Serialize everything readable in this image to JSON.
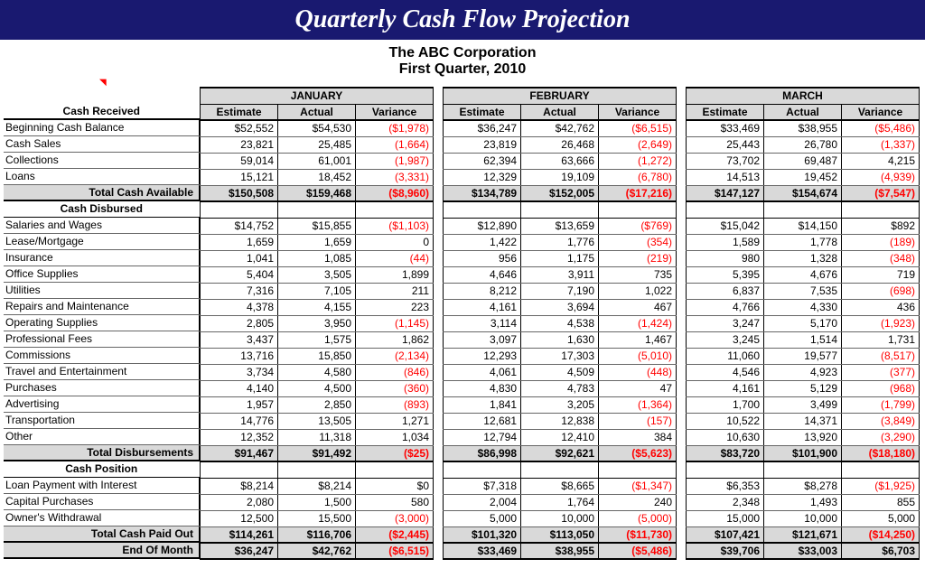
{
  "title": "Quarterly Cash Flow Projection",
  "company": "The ABC Corporation",
  "period": "First Quarter, 2010",
  "col_headers": [
    "Estimate",
    "Actual",
    "Variance"
  ],
  "months": [
    "JANUARY",
    "FEBRUARY",
    "MARCH"
  ],
  "colors": {
    "banner_bg": "#191970",
    "banner_text": "#ffffff",
    "header_bg": "#d9d9d9",
    "negative": "#ff0000",
    "grid": "#000000"
  },
  "sections": [
    {
      "name": "Cash Received",
      "rows": [
        {
          "label": "Beginning Cash Balance",
          "m": [
            [
              "$52,552",
              "$54,530",
              "($1,978)"
            ],
            [
              "$36,247",
              "$42,762",
              "($6,515)"
            ],
            [
              "$33,469",
              "$38,955",
              "($5,486)"
            ]
          ]
        },
        {
          "label": "Cash Sales",
          "m": [
            [
              "23,821",
              "25,485",
              "(1,664)"
            ],
            [
              "23,819",
              "26,468",
              "(2,649)"
            ],
            [
              "25,443",
              "26,780",
              "(1,337)"
            ]
          ]
        },
        {
          "label": "Collections",
          "m": [
            [
              "59,014",
              "61,001",
              "(1,987)"
            ],
            [
              "62,394",
              "63,666",
              "(1,272)"
            ],
            [
              "73,702",
              "69,487",
              "4,215"
            ]
          ]
        },
        {
          "label": "Loans",
          "m": [
            [
              "15,121",
              "18,452",
              "(3,331)"
            ],
            [
              "12,329",
              "19,109",
              "(6,780)"
            ],
            [
              "14,513",
              "19,452",
              "(4,939)"
            ]
          ]
        }
      ],
      "total": {
        "label": "Total Cash Available",
        "m": [
          [
            "$150,508",
            "$159,468",
            "($8,960)"
          ],
          [
            "$134,789",
            "$152,005",
            "($17,216)"
          ],
          [
            "$147,127",
            "$154,674",
            "($7,547)"
          ]
        ]
      }
    },
    {
      "name": "Cash Disbursed",
      "rows": [
        {
          "label": "Salaries and Wages",
          "m": [
            [
              "$14,752",
              "$15,855",
              "($1,103)"
            ],
            [
              "$12,890",
              "$13,659",
              "($769)"
            ],
            [
              "$15,042",
              "$14,150",
              "$892"
            ]
          ]
        },
        {
          "label": "Lease/Mortgage",
          "m": [
            [
              "1,659",
              "1,659",
              "0"
            ],
            [
              "1,422",
              "1,776",
              "(354)"
            ],
            [
              "1,589",
              "1,778",
              "(189)"
            ]
          ]
        },
        {
          "label": "Insurance",
          "m": [
            [
              "1,041",
              "1,085",
              "(44)"
            ],
            [
              "956",
              "1,175",
              "(219)"
            ],
            [
              "980",
              "1,328",
              "(348)"
            ]
          ]
        },
        {
          "label": "Office Supplies",
          "m": [
            [
              "5,404",
              "3,505",
              "1,899"
            ],
            [
              "4,646",
              "3,911",
              "735"
            ],
            [
              "5,395",
              "4,676",
              "719"
            ]
          ]
        },
        {
          "label": "Utilities",
          "m": [
            [
              "7,316",
              "7,105",
              "211"
            ],
            [
              "8,212",
              "7,190",
              "1,022"
            ],
            [
              "6,837",
              "7,535",
              "(698)"
            ]
          ]
        },
        {
          "label": "Repairs and Maintenance",
          "m": [
            [
              "4,378",
              "4,155",
              "223"
            ],
            [
              "4,161",
              "3,694",
              "467"
            ],
            [
              "4,766",
              "4,330",
              "436"
            ]
          ]
        },
        {
          "label": "Operating Supplies",
          "m": [
            [
              "2,805",
              "3,950",
              "(1,145)"
            ],
            [
              "3,114",
              "4,538",
              "(1,424)"
            ],
            [
              "3,247",
              "5,170",
              "(1,923)"
            ]
          ]
        },
        {
          "label": "Professional Fees",
          "m": [
            [
              "3,437",
              "1,575",
              "1,862"
            ],
            [
              "3,097",
              "1,630",
              "1,467"
            ],
            [
              "3,245",
              "1,514",
              "1,731"
            ]
          ]
        },
        {
          "label": "Commissions",
          "m": [
            [
              "13,716",
              "15,850",
              "(2,134)"
            ],
            [
              "12,293",
              "17,303",
              "(5,010)"
            ],
            [
              "11,060",
              "19,577",
              "(8,517)"
            ]
          ]
        },
        {
          "label": "Travel and Entertainment",
          "m": [
            [
              "3,734",
              "4,580",
              "(846)"
            ],
            [
              "4,061",
              "4,509",
              "(448)"
            ],
            [
              "4,546",
              "4,923",
              "(377)"
            ]
          ]
        },
        {
          "label": "Purchases",
          "m": [
            [
              "4,140",
              "4,500",
              "(360)"
            ],
            [
              "4,830",
              "4,783",
              "47"
            ],
            [
              "4,161",
              "5,129",
              "(968)"
            ]
          ]
        },
        {
          "label": "Advertising",
          "m": [
            [
              "1,957",
              "2,850",
              "(893)"
            ],
            [
              "1,841",
              "3,205",
              "(1,364)"
            ],
            [
              "1,700",
              "3,499",
              "(1,799)"
            ]
          ]
        },
        {
          "label": "Transportation",
          "m": [
            [
              "14,776",
              "13,505",
              "1,271"
            ],
            [
              "12,681",
              "12,838",
              "(157)"
            ],
            [
              "10,522",
              "14,371",
              "(3,849)"
            ]
          ]
        },
        {
          "label": "Other",
          "m": [
            [
              "12,352",
              "11,318",
              "1,034"
            ],
            [
              "12,794",
              "12,410",
              "384"
            ],
            [
              "10,630",
              "13,920",
              "(3,290)"
            ]
          ]
        }
      ],
      "total": {
        "label": "Total Disbursements",
        "m": [
          [
            "$91,467",
            "$91,492",
            "($25)"
          ],
          [
            "$86,998",
            "$92,621",
            "($5,623)"
          ],
          [
            "$83,720",
            "$101,900",
            "($18,180)"
          ]
        ]
      }
    },
    {
      "name": "Cash Position",
      "rows": [
        {
          "label": "Loan Payment with Interest",
          "m": [
            [
              "$8,214",
              "$8,214",
              "$0"
            ],
            [
              "$7,318",
              "$8,665",
              "($1,347)"
            ],
            [
              "$6,353",
              "$8,278",
              "($1,925)"
            ]
          ]
        },
        {
          "label": "Capital Purchases",
          "m": [
            [
              "2,080",
              "1,500",
              "580"
            ],
            [
              "2,004",
              "1,764",
              "240"
            ],
            [
              "2,348",
              "1,493",
              "855"
            ]
          ]
        },
        {
          "label": "Owner's Withdrawal",
          "m": [
            [
              "12,500",
              "15,500",
              "(3,000)"
            ],
            [
              "5,000",
              "10,000",
              "(5,000)"
            ],
            [
              "15,000",
              "10,000",
              "5,000"
            ]
          ]
        }
      ],
      "total": {
        "label": "Total Cash Paid Out",
        "m": [
          [
            "$114,261",
            "$116,706",
            "($2,445)"
          ],
          [
            "$101,320",
            "$113,050",
            "($11,730)"
          ],
          [
            "$107,421",
            "$121,671",
            "($14,250)"
          ]
        ]
      },
      "total2": {
        "label": "End Of Month",
        "m": [
          [
            "$36,247",
            "$42,762",
            "($6,515)"
          ],
          [
            "$33,469",
            "$38,955",
            "($5,486)"
          ],
          [
            "$39,706",
            "$33,003",
            "$6,703"
          ]
        ]
      }
    }
  ]
}
